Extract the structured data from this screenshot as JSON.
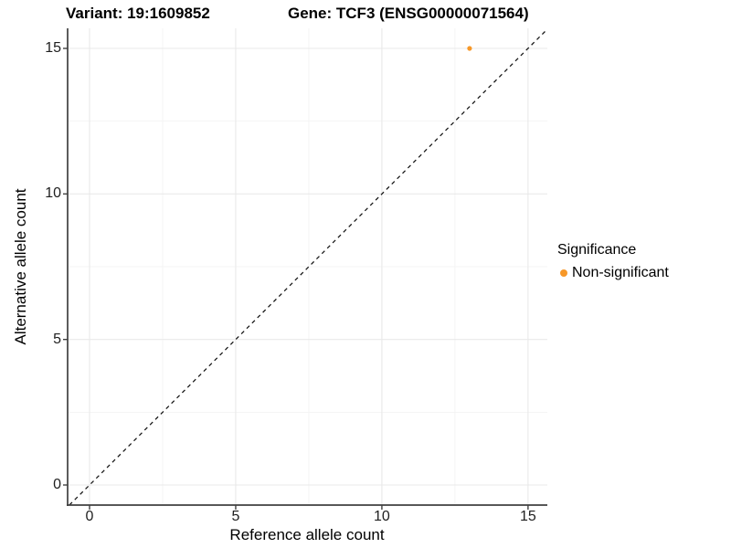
{
  "titles": {
    "variant": "Variant: 19:1609852",
    "gene": "Gene: TCF3 (ENSG00000071564)"
  },
  "chart_data": {
    "type": "scatter",
    "title_left": "Variant: 19:1609852",
    "title_right": "Gene: TCF3 (ENSG00000071564)",
    "xlabel": "Reference allele count",
    "ylabel": "Alternative allele count",
    "xlim": [
      -0.75,
      15.66
    ],
    "ylim": [
      -0.69,
      15.69
    ],
    "x_ticks": [
      "0",
      "5",
      "10",
      "15"
    ],
    "x_tick_values": [
      0,
      5,
      10,
      15
    ],
    "y_ticks": [
      "0",
      "5",
      "10",
      "15"
    ],
    "y_tick_values": [
      0,
      5,
      10,
      15
    ],
    "x_minor_values": [
      2.5,
      7.5,
      12.5
    ],
    "y_minor_values": [
      2.5,
      7.5,
      12.5
    ],
    "grid": true,
    "series": [
      {
        "name": "Non-significant",
        "color": "#F79828",
        "points": [
          {
            "x": 13,
            "y": 15
          }
        ]
      }
    ],
    "reference_line": {
      "type": "identity",
      "style": "dashed",
      "color": "#141414"
    },
    "legend": {
      "position": "right",
      "title": "Significance",
      "entries": [
        {
          "label": "Non-significant",
          "color": "#F79828"
        }
      ]
    },
    "colors": {
      "grid_major": "#e9e9e9",
      "grid_minor": "#f2f2f2",
      "axis_line": "#404040",
      "point": "#F79828"
    }
  }
}
